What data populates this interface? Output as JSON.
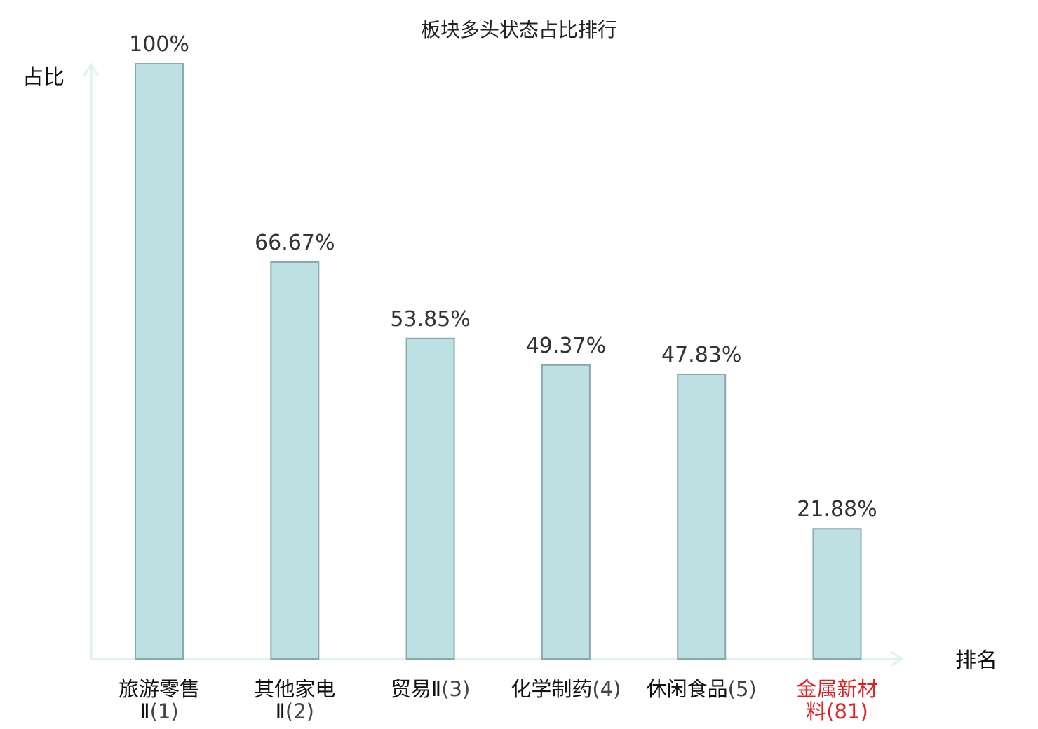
{
  "chart_data": {
    "type": "bar",
    "title": "板块多头状态占比排行",
    "xlabel": "排名",
    "ylabel": "占比",
    "ylim": [
      0,
      100
    ],
    "grid": false,
    "legend": "none",
    "categories": [
      {
        "name_lines": [
          "旅游零售",
          "Ⅱ"
        ],
        "rank": "(1)",
        "value": 100,
        "label": "100%",
        "highlight": false
      },
      {
        "name_lines": [
          "其他家电",
          "Ⅱ"
        ],
        "rank": "(2)",
        "value": 66.67,
        "label": "66.67%",
        "highlight": false
      },
      {
        "name_lines": [
          "贸易Ⅱ"
        ],
        "rank": "(3)",
        "value": 53.85,
        "label": "53.85%",
        "highlight": false
      },
      {
        "name_lines": [
          "化学制药"
        ],
        "rank": "(4)",
        "value": 49.37,
        "label": "49.37%",
        "highlight": false
      },
      {
        "name_lines": [
          "休闲食品"
        ],
        "rank": "(5)",
        "value": 47.83,
        "label": "47.83%",
        "highlight": false
      },
      {
        "name_lines": [
          "金属新材",
          "料"
        ],
        "rank": "(81)",
        "value": 21.88,
        "label": "21.88%",
        "highlight": true
      }
    ],
    "colors": {
      "bar_fill": "#bde0e3",
      "bar_stroke": "#8aa9ab",
      "axis": "#dff2ef",
      "highlight_text": "#e02020"
    }
  }
}
